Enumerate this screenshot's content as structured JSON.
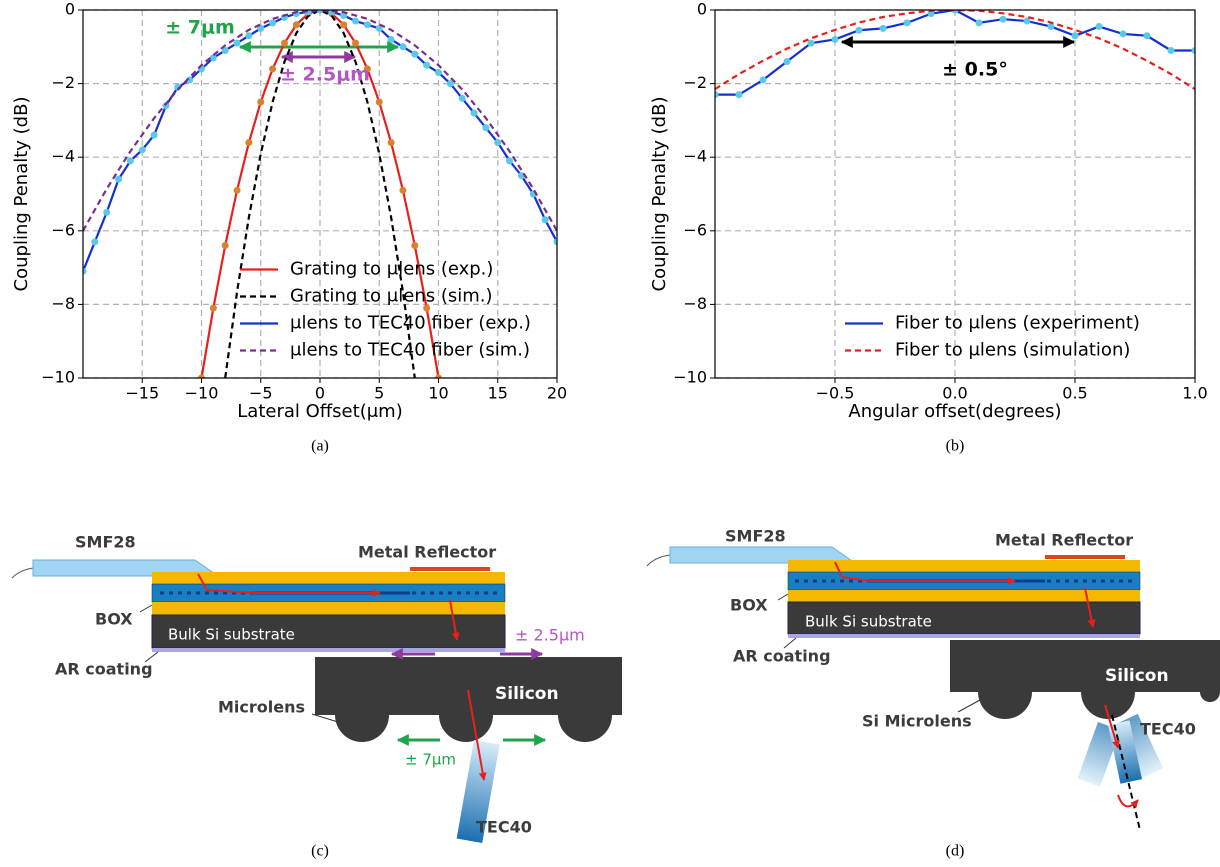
{
  "chart_data": [
    {
      "type": "line",
      "xlabel": "Lateral Offset(μm)",
      "ylabel": "Coupling Penalty (dB)",
      "xlim": [
        -20,
        20
      ],
      "ylim": [
        -10,
        0
      ],
      "xticks": [
        {
          "value": -15,
          "label": "−15"
        },
        {
          "value": -10,
          "label": "−10"
        },
        {
          "value": -5,
          "label": "−5"
        },
        0,
        5,
        10,
        15,
        20
      ],
      "yticks": [
        {
          "value": -10,
          "label": "−10"
        },
        {
          "value": -8,
          "label": "−8"
        },
        {
          "value": -6,
          "label": "−6"
        },
        {
          "value": -4,
          "label": "−4"
        },
        {
          "value": -2,
          "label": "−2"
        },
        0
      ],
      "grid": true,
      "legend": "lower center",
      "series": [
        {
          "name": "Grating to μlens (exp.)",
          "color": "#e8201c",
          "marker": "#d9822b",
          "x": [
            -10,
            -9,
            -8,
            -7,
            -6,
            -5,
            -4,
            -3,
            -2,
            -1,
            0,
            1,
            2,
            3,
            4,
            5,
            6,
            7,
            8,
            9,
            10
          ],
          "values": [
            -10,
            -8.1,
            -6.4,
            -4.9,
            -3.6,
            -2.5,
            -1.6,
            -0.9,
            -0.4,
            -0.1,
            0,
            -0.1,
            -0.4,
            -0.9,
            -1.6,
            -2.5,
            -3.6,
            -4.9,
            -6.4,
            -8.1,
            -10
          ]
        },
        {
          "name": "Grating to μlens (sim.)",
          "color": "#000000",
          "dashed": true,
          "x": [
            -8,
            -7,
            -6,
            -5,
            -4,
            -3,
            -2,
            -1,
            0,
            1,
            2,
            3,
            4,
            5,
            6,
            7,
            8
          ],
          "values": [
            -10,
            -7.66,
            -5.63,
            -3.91,
            -2.5,
            -1.41,
            -0.63,
            -0.16,
            0,
            -0.16,
            -0.63,
            -1.41,
            -2.5,
            -3.91,
            -5.63,
            -7.66,
            -10
          ]
        },
        {
          "name": "μlens to TEC40 fiber (exp.)",
          "color": "#1232d0",
          "marker": "#5bc8e8",
          "x": [
            -20,
            -19,
            -18,
            -17,
            -16,
            -15,
            -14,
            -13,
            -12,
            -11,
            -10,
            -9,
            -8,
            -7,
            -6,
            -5,
            -4,
            -3,
            -2,
            -1,
            0,
            1,
            2,
            3,
            4,
            5,
            6,
            7,
            8,
            9,
            10,
            11,
            12,
            13,
            14,
            15,
            16,
            17,
            18,
            19,
            20
          ],
          "values": [
            -7.1,
            -6.3,
            -5.5,
            -4.6,
            -4.1,
            -3.8,
            -3.4,
            -2.6,
            -2.1,
            -1.9,
            -1.6,
            -1.3,
            -1.1,
            -0.9,
            -0.7,
            -0.5,
            -0.35,
            -0.2,
            -0.1,
            -0.05,
            0,
            -0.05,
            -0.15,
            -0.3,
            -0.4,
            -0.5,
            -0.8,
            -1,
            -1.2,
            -1.5,
            -1.7,
            -2,
            -2.4,
            -2.8,
            -3.2,
            -3.6,
            -4.1,
            -4.5,
            -5,
            -5.7,
            -6.3
          ]
        },
        {
          "name": "μlens to TEC40 fiber (sim.)",
          "color": "#7b2d8e",
          "dashed": true,
          "x": [
            -20,
            -18,
            -16,
            -14,
            -12,
            -10,
            -8,
            -6,
            -4,
            -2,
            0,
            2,
            4,
            6,
            8,
            10,
            12,
            14,
            16,
            18,
            20
          ],
          "values": [
            -6,
            -4.86,
            -3.84,
            -2.94,
            -2.16,
            -1.5,
            -0.96,
            -0.54,
            -0.24,
            -0.06,
            0,
            -0.06,
            -0.24,
            -0.54,
            -0.96,
            -1.5,
            -2.16,
            -2.94,
            -3.84,
            -4.86,
            -6
          ]
        }
      ],
      "annotations": [
        {
          "text": "± 7μm",
          "color": "#1ea54c"
        },
        {
          "text": "± 2.5μm",
          "color": "#b556c4"
        }
      ]
    },
    {
      "type": "line",
      "xlabel": "Angular offset(degrees)",
      "ylabel": "Coupling Penalty (dB)",
      "xlim": [
        -1,
        1
      ],
      "ylim": [
        -10,
        0
      ],
      "xticks": [
        {
          "value": -0.5,
          "label": "−0.5"
        },
        {
          "value": 0,
          "label": "0.0"
        },
        0.5,
        {
          "value": 1,
          "label": "1.0"
        }
      ],
      "yticks": [
        {
          "value": -10,
          "label": "−10"
        },
        {
          "value": -8,
          "label": "−8"
        },
        {
          "value": -6,
          "label": "−6"
        },
        {
          "value": -4,
          "label": "−4"
        },
        {
          "value": -2,
          "label": "−2"
        },
        0
      ],
      "grid": true,
      "legend": "lower right",
      "series": [
        {
          "name": "Fiber to μlens (experiment)",
          "color": "#1232d0",
          "marker": "#5bc8e8",
          "x": [
            -1,
            -0.9,
            -0.8,
            -0.7,
            -0.6,
            -0.5,
            -0.4,
            -0.3,
            -0.2,
            -0.1,
            0,
            0.1,
            0.2,
            0.3,
            0.4,
            0.5,
            0.6,
            0.7,
            0.8,
            0.9,
            1
          ],
          "values": [
            -2.3,
            -2.3,
            -1.9,
            -1.4,
            -0.9,
            -0.8,
            -0.55,
            -0.5,
            -0.35,
            -0.1,
            0,
            -0.35,
            -0.25,
            -0.3,
            -0.45,
            -0.7,
            -0.45,
            -0.65,
            -0.7,
            -1.1,
            -1.1
          ]
        },
        {
          "name": "Fiber to μlens (simulation)",
          "color": "#e8201c",
          "dashed": true,
          "x": [
            -1,
            -0.9,
            -0.8,
            -0.7,
            -0.6,
            -0.5,
            -0.4,
            -0.3,
            -0.2,
            -0.1,
            0,
            0.1,
            0.2,
            0.3,
            0.4,
            0.5,
            0.6,
            0.7,
            0.8,
            0.9,
            1
          ],
          "values": [
            -2.15,
            -1.74,
            -1.38,
            -1.05,
            -0.77,
            -0.54,
            -0.34,
            -0.19,
            -0.09,
            -0.02,
            0,
            -0.02,
            -0.09,
            -0.19,
            -0.34,
            -0.54,
            -0.77,
            -1.05,
            -1.38,
            -1.74,
            -2.15
          ]
        }
      ],
      "annotations": [
        {
          "text": "± 0.5°",
          "color": "#000000"
        }
      ]
    }
  ],
  "captions": [
    "(a)",
    "(b)",
    "(c)",
    "(d)"
  ],
  "diagrams": [
    {
      "labels": [
        "SMF28",
        "Metal Reflector",
        "BOX",
        "Bulk Si substrate",
        "AR coating",
        "Microlens",
        "Silicon",
        "± 2.5μm",
        "± 7μm",
        "TEC40"
      ]
    },
    {
      "labels": [
        "SMF28",
        "Metal Reflector",
        "BOX",
        "Bulk Si substrate",
        "AR coating",
        "Si Microlens",
        "Silicon",
        "TEC40"
      ]
    }
  ]
}
